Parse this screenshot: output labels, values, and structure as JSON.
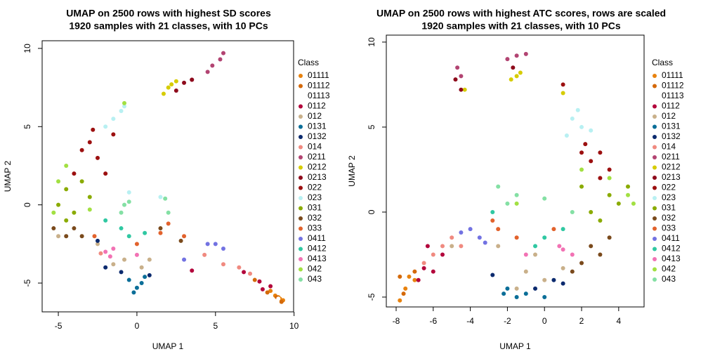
{
  "chart_data": [
    {
      "type": "scatter",
      "title": "UMAP on 2500 rows with highest SD scores",
      "subtitle": "1920 samples with 21 classes, with 10 PCs",
      "x_label": "UMAP 1",
      "y_label": "UMAP 2",
      "legend_title": "Class",
      "xlim": [
        -6.03,
        9.97
      ],
      "ylim": [
        -6.84,
        10.49
      ],
      "xticks": [
        -5,
        0,
        5,
        10
      ],
      "yticks": [
        -5,
        0,
        5,
        10
      ],
      "series": [
        {
          "name": "01111",
          "color": "#e8820e",
          "x": [
            8.5,
            9,
            9.3,
            8.8,
            9.1
          ],
          "y": [
            -5.5,
            -5.9,
            -6.1,
            -5.8,
            -6.0
          ]
        },
        {
          "name": "01112",
          "color": "#d4690a",
          "x": [
            8.3,
            8.9,
            9.2,
            7.5
          ],
          "y": [
            -5.6,
            -5.9,
            -6.2,
            -4.8
          ]
        },
        {
          "name": "01113",
          "color": "#ffffff",
          "x": [
            9.0
          ],
          "y": [
            -6.0
          ]
        },
        {
          "name": "0112",
          "color": "#b3063c",
          "x": [
            7.8,
            8.5,
            6.8,
            8.0,
            3.5
          ],
          "y": [
            -4.9,
            -5.2,
            -4.3,
            -5.4,
            -4.2
          ]
        },
        {
          "name": "012",
          "color": "#c9b08a",
          "x": [
            -0.8,
            0.3,
            -2.5,
            -1.5,
            0.8,
            -5.0
          ],
          "y": [
            -3.5,
            -4.0,
            -2.5,
            -3.8,
            -3.5,
            -2.0
          ]
        },
        {
          "name": "0131",
          "color": "#0b6e98",
          "x": [
            -0.5,
            0,
            0.3,
            -0.2,
            0.5
          ],
          "y": [
            -4.8,
            -5.3,
            -5.0,
            -5.6,
            -4.6
          ]
        },
        {
          "name": "0132",
          "color": "#0b2a6e",
          "x": [
            -2.0,
            -1.0,
            0.8,
            -2.5
          ],
          "y": [
            -4.0,
            -4.3,
            -4.5,
            -2.3
          ]
        },
        {
          "name": "014",
          "color": "#f08a80",
          "x": [
            6.5,
            7.2,
            5.5,
            -2.3,
            4.3
          ],
          "y": [
            -4.0,
            -4.4,
            -3.8,
            -3.1,
            -3.2
          ]
        },
        {
          "name": "0211",
          "color": "#b24472",
          "x": [
            4.5,
            5.3,
            5.5,
            4.8,
            3.5
          ],
          "y": [
            8.5,
            9.3,
            9.7,
            8.9,
            8.0
          ]
        },
        {
          "name": "0212",
          "color": "#d6cc00",
          "x": [
            2.0,
            2.5,
            1.7,
            2.2
          ],
          "y": [
            7.5,
            7.9,
            7.1,
            7.7
          ]
        },
        {
          "name": "0213",
          "color": "#8e0b1c",
          "x": [
            3.0,
            2.5,
            3.5
          ],
          "y": [
            7.8,
            7.3,
            8.0
          ]
        },
        {
          "name": "022",
          "color": "#9c1010",
          "x": [
            -3.0,
            -2.5,
            -4.0,
            -2.0,
            -3.5,
            -1.5,
            -2.8
          ],
          "y": [
            4.0,
            3.0,
            2.0,
            2.0,
            3.5,
            4.5,
            4.8
          ]
        },
        {
          "name": "023",
          "color": "#b8f0f2",
          "x": [
            -1.5,
            -1.0,
            -0.8,
            -2.0,
            -0.5,
            1.5
          ],
          "y": [
            5.5,
            6.0,
            6.3,
            5.0,
            0.8,
            0.5
          ]
        },
        {
          "name": "031",
          "color": "#8aab00",
          "x": [
            -4.5,
            -5.0,
            -4.0,
            -3.0,
            -4.5,
            -3.5
          ],
          "y": [
            1.0,
            0,
            -0.5,
            0.5,
            -1.0,
            1.5
          ]
        },
        {
          "name": "032",
          "color": "#7a4a1c",
          "x": [
            -5.3,
            -4.5,
            -3.5,
            -4.0,
            1.5,
            2.8
          ],
          "y": [
            -1.5,
            -2.0,
            -2.0,
            -1.5,
            -1.5,
            -2.3
          ]
        },
        {
          "name": "033",
          "color": "#e2622c",
          "x": [
            1.5,
            2.0,
            3.0,
            -2.7,
            0
          ],
          "y": [
            -1.8,
            -1.2,
            -2.0,
            -2.0,
            -2.5
          ]
        },
        {
          "name": "0411",
          "color": "#7272e2",
          "x": [
            4.5,
            5.0,
            5.5,
            3.0
          ],
          "y": [
            -2.5,
            -2.5,
            -2.8,
            -3.5
          ]
        },
        {
          "name": "0412",
          "color": "#30c8a2",
          "x": [
            -1.0,
            -0.5,
            -2.0,
            0.5
          ],
          "y": [
            -1.5,
            -2.0,
            -1.0,
            -1.8
          ]
        },
        {
          "name": "0413",
          "color": "#f272b4",
          "x": [
            -2.0,
            -1.5,
            0,
            -1.7
          ],
          "y": [
            -3.0,
            -2.8,
            -3.2,
            -3.3
          ]
        },
        {
          "name": "042",
          "color": "#a2e042",
          "x": [
            -5.0,
            -4.5,
            -5.3,
            -3.0,
            -0.8
          ],
          "y": [
            1.5,
            2.5,
            -0.5,
            -0.3,
            6.5
          ]
        },
        {
          "name": "043",
          "color": "#84e0a4",
          "x": [
            -0.8,
            -1.0,
            -0.5,
            1.8,
            2.0
          ],
          "y": [
            0,
            -0.5,
            0.2,
            0.4,
            -0.5
          ]
        }
      ]
    },
    {
      "type": "scatter",
      "title": "UMAP on 2500 rows with highest ATC scores, rows are scaled",
      "subtitle": "1920 samples with 21 classes, with 10 PCs",
      "x_label": "UMAP 1",
      "y_label": "UMAP 2",
      "legend_title": "Class",
      "xlim": [
        -8.53,
        5.37
      ],
      "ylim": [
        -5.58,
        10.41
      ],
      "xticks": [
        -8,
        -6,
        -4,
        -2,
        0,
        2,
        4
      ],
      "yticks": [
        -5,
        0,
        5,
        10
      ],
      "series": [
        {
          "name": "01111",
          "color": "#e8820e",
          "x": [
            -7.8,
            -7.5,
            -7.0,
            -7.3
          ],
          "y": [
            -5.2,
            -4.5,
            -4.0,
            -3.8
          ]
        },
        {
          "name": "01112",
          "color": "#d4690a",
          "x": [
            -7.6,
            -7.0,
            -7.8
          ],
          "y": [
            -4.8,
            -3.5,
            -3.8
          ]
        },
        {
          "name": "01113",
          "color": "#ffffff",
          "x": [
            -7.5
          ],
          "y": [
            -4.0
          ]
        },
        {
          "name": "0112",
          "color": "#b3063c",
          "x": [
            -6.8,
            -6.5,
            -6.0,
            -5.5,
            -6.3
          ],
          "y": [
            -4.0,
            -3.3,
            -3.5,
            -2.5,
            -2.0
          ]
        },
        {
          "name": "012",
          "color": "#c9b08a",
          "x": [
            -1.0,
            0,
            -0.5,
            1.0,
            -2.5,
            -5.0,
            -1.5
          ],
          "y": [
            -3.5,
            -4.0,
            -2.5,
            -3.3,
            -2.0,
            -2.0,
            -4.5
          ]
        },
        {
          "name": "0131",
          "color": "#0b6e98",
          "x": [
            -2.2,
            -1.5,
            -2.0,
            -1.0,
            0
          ],
          "y": [
            -4.8,
            -5.0,
            -4.5,
            -4.8,
            -5.0
          ]
        },
        {
          "name": "0132",
          "color": "#0b2a6e",
          "x": [
            -2.8,
            -0.5,
            0.5,
            1.0
          ],
          "y": [
            -3.7,
            -4.5,
            -4.0,
            -4.2
          ]
        },
        {
          "name": "014",
          "color": "#f08a80",
          "x": [
            -6.0,
            -5.5,
            -5.0,
            -4.5,
            -6.5
          ],
          "y": [
            -2.5,
            -2.0,
            -1.5,
            -2.0,
            -3.0
          ]
        },
        {
          "name": "0211",
          "color": "#b24472",
          "x": [
            -4.5,
            -4.7,
            -2.0,
            -1.5,
            -1.0
          ],
          "y": [
            8.0,
            8.5,
            9.0,
            9.2,
            9.3
          ]
        },
        {
          "name": "0212",
          "color": "#d6cc00",
          "x": [
            -1.5,
            -1.3,
            -4.3,
            -1.8,
            1.0
          ],
          "y": [
            8.0,
            8.2,
            7.2,
            7.8,
            7.0
          ]
        },
        {
          "name": "0213",
          "color": "#8e0b1c",
          "x": [
            -4.5,
            -4.8,
            -1.7
          ],
          "y": [
            7.2,
            7.8,
            8.5
          ]
        },
        {
          "name": "022",
          "color": "#9c1010",
          "x": [
            2.0,
            2.5,
            3.0,
            3.5,
            2.2,
            1.0,
            3.0
          ],
          "y": [
            3.5,
            3.0,
            3.5,
            2.5,
            4.0,
            7.5,
            2.0
          ]
        },
        {
          "name": "023",
          "color": "#b8f0f2",
          "x": [
            1.5,
            2.0,
            1.2,
            2.5,
            1.8
          ],
          "y": [
            5.5,
            5.0,
            4.5,
            4.8,
            6.0
          ]
        },
        {
          "name": "031",
          "color": "#8aab00",
          "x": [
            3.5,
            4.0,
            2.5,
            3.0,
            4.5,
            2.0
          ],
          "y": [
            1.0,
            0.5,
            0,
            -0.5,
            1.5,
            1.5
          ]
        },
        {
          "name": "032",
          "color": "#7a4a1c",
          "x": [
            2.5,
            3.0,
            2.0,
            1.5,
            3.5
          ],
          "y": [
            -2.0,
            -2.5,
            -3.0,
            -3.5,
            -1.5
          ]
        },
        {
          "name": "033",
          "color": "#e2622c",
          "x": [
            -2.5,
            -2.8,
            -1.5,
            0.5
          ],
          "y": [
            -1.0,
            -0.5,
            -1.5,
            -1.0
          ]
        },
        {
          "name": "0411",
          "color": "#7272e2",
          "x": [
            -4.0,
            -3.5,
            -4.5,
            -3.2
          ],
          "y": [
            -1.0,
            -1.5,
            -1.2,
            -1.8
          ]
        },
        {
          "name": "0412",
          "color": "#30c8a2",
          "x": [
            -0.5,
            0,
            1.0,
            -2.8
          ],
          "y": [
            -2.0,
            -1.5,
            -1.0,
            0
          ]
        },
        {
          "name": "0413",
          "color": "#f272b4",
          "x": [
            0.8,
            1.0,
            1.5,
            -1.0
          ],
          "y": [
            -2.0,
            -2.2,
            -2.5,
            -2.5
          ]
        },
        {
          "name": "042",
          "color": "#a2e042",
          "x": [
            4.5,
            4.8,
            2.0,
            3.5,
            -1.5
          ],
          "y": [
            1.0,
            0.5,
            2.5,
            2.0,
            0.5
          ]
        },
        {
          "name": "043",
          "color": "#84e0a4",
          "x": [
            -1.5,
            -2.0,
            0,
            -2.5,
            1.5
          ],
          "y": [
            1.0,
            0.5,
            0.8,
            1.5,
            0
          ]
        }
      ]
    }
  ]
}
